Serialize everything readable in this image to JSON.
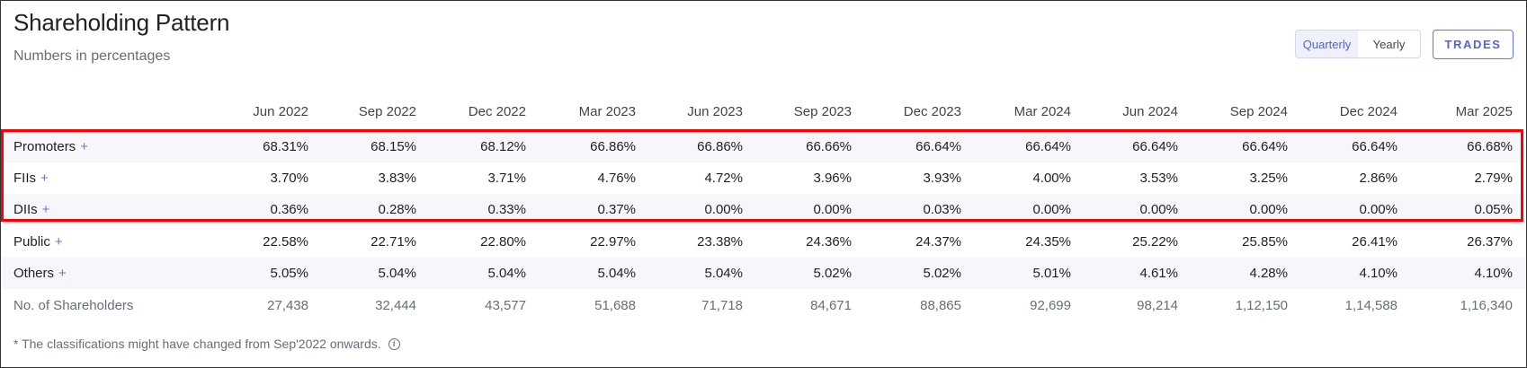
{
  "header": {
    "title": "Shareholding Pattern",
    "subtitle": "Numbers in percentages"
  },
  "toggle": {
    "quarterly_label": "Quarterly",
    "yearly_label": "Yearly",
    "selected": "Quarterly"
  },
  "trades_label": "TRADES",
  "table": {
    "columns": [
      "Jun 2022",
      "Sep 2022",
      "Dec 2022",
      "Mar 2023",
      "Jun 2023",
      "Sep 2023",
      "Dec 2023",
      "Mar 2024",
      "Jun 2024",
      "Sep 2024",
      "Dec 2024",
      "Mar 2025"
    ],
    "rows": [
      {
        "label": "Promoters",
        "expand": "+",
        "values": [
          "68.31%",
          "68.15%",
          "68.12%",
          "66.86%",
          "66.86%",
          "66.66%",
          "66.64%",
          "66.64%",
          "66.64%",
          "66.64%",
          "66.64%",
          "66.68%"
        ]
      },
      {
        "label": "FIIs",
        "expand": "+",
        "values": [
          "3.70%",
          "3.83%",
          "3.71%",
          "4.76%",
          "4.72%",
          "3.96%",
          "3.93%",
          "4.00%",
          "3.53%",
          "3.25%",
          "2.86%",
          "2.79%"
        ]
      },
      {
        "label": "DIIs",
        "expand": "+",
        "values": [
          "0.36%",
          "0.28%",
          "0.33%",
          "0.37%",
          "0.00%",
          "0.00%",
          "0.03%",
          "0.00%",
          "0.00%",
          "0.00%",
          "0.00%",
          "0.05%"
        ]
      },
      {
        "label": "Public",
        "expand": "+",
        "values": [
          "22.58%",
          "22.71%",
          "22.80%",
          "22.97%",
          "23.38%",
          "24.36%",
          "24.37%",
          "24.35%",
          "25.22%",
          "25.85%",
          "26.41%",
          "26.37%"
        ]
      },
      {
        "label": "Others",
        "expand": "+",
        "values": [
          "5.05%",
          "5.04%",
          "5.04%",
          "5.04%",
          "5.04%",
          "5.02%",
          "5.02%",
          "5.01%",
          "4.61%",
          "4.28%",
          "4.10%",
          "4.10%"
        ]
      },
      {
        "label": "No. of Shareholders",
        "expand": "",
        "values": [
          "27,438",
          "32,444",
          "43,577",
          "51,688",
          "71,718",
          "84,671",
          "88,865",
          "92,699",
          "98,214",
          "1,12,150",
          "1,14,588",
          "1,16,340"
        ]
      }
    ]
  },
  "footnote": "* The classifications might have changed from Sep'2022 onwards.",
  "info_icon_glyph": "i",
  "colors": {
    "accent": "#5563c8",
    "highlight": "#ff0000",
    "row_shade": "#f6f6fb"
  }
}
